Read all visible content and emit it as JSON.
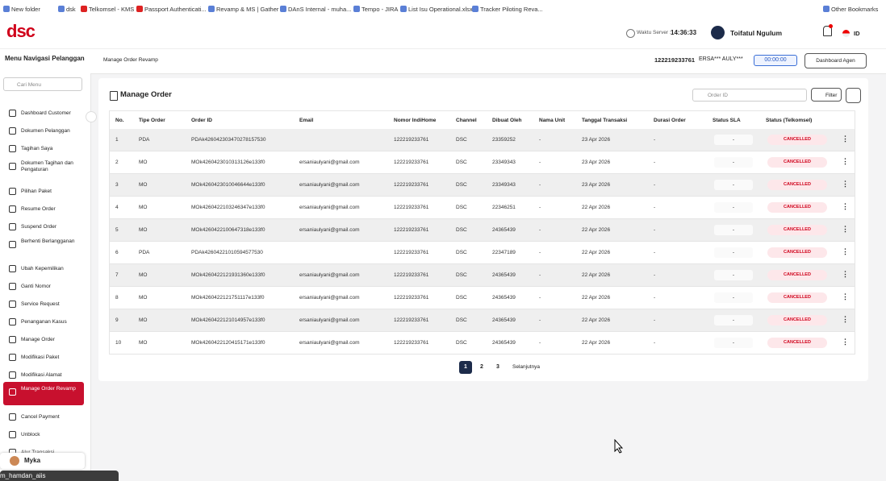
{
  "bookmarks": [
    "New folder",
    "dsk",
    "Telkomsel - KMS",
    "Passport Authenticati...",
    "Revamp & MS | Gather",
    "DAnS Internal - muha...",
    "Tempo - JIRA",
    "List Isu Operational.xlsx",
    "Tracker Piloting Reva...",
    "Other Bookmarks"
  ],
  "header": {
    "logo": "dsc",
    "server_label": "Waktu Server :",
    "server_time": "14:36:33",
    "user": "Toifatul Ngulum",
    "lang": "ID"
  },
  "subheader": {
    "nav_title": "Menu Navigasi Pelanggan",
    "breadcrumb": "Manage Order Revamp",
    "number": "122219233761",
    "name": "ERSA*** AULY***",
    "timer": "00:00:00",
    "button": "Dashboard Agen"
  },
  "sidebar": {
    "search": "Cari Menu",
    "items": [
      "Dashboard Customer",
      "Dokumen Pelanggan",
      "Tagihan Saya",
      "Dokumen Tagihan dan Pengaturan",
      "Pilihan Paket",
      "Resume Order",
      "Suspend Order",
      "Berhenti Berlangganan",
      "Ubah Kepemilikan",
      "Ganti Nomor",
      "Service Request",
      "Penanganan Kasus",
      "Manage Order",
      "Modifikasi Paket",
      "Modifikasi Alamat",
      "Manage Order Revamp",
      "Cancel Payment",
      "Unblock",
      "Alur Transaksi"
    ],
    "active": 15,
    "assistant": "Myka"
  },
  "card": {
    "title": "Manage Order",
    "search": "Order ID",
    "filter": "Filter"
  },
  "table": {
    "columns": [
      "No.",
      "Tipe Order",
      "Order ID",
      "Email",
      "Nomor IndiHome",
      "Channel",
      "Dibuat Oleh",
      "Nama Unit",
      "Tanggal Transaksi",
      "Durasi Order",
      "Status SLA",
      "Status (Telkomsel)"
    ],
    "rows": [
      [
        "1",
        "PDA",
        "PDAk426042303470278157530",
        null,
        "122219233761",
        "DSC",
        "23359252",
        "-",
        "23 Apr 2026",
        "-",
        "-",
        "CANCELLED"
      ],
      [
        "2",
        "MO",
        "MOk4260423010313126e133f0",
        "ersaniaulyani@gmail.com",
        "122219233761",
        "DSC",
        "23349343",
        "-",
        "23 Apr 2026",
        "-",
        "-",
        "CANCELLED"
      ],
      [
        "3",
        "MO",
        "MOk4260423010046644e133f0",
        "ersaniaulyani@gmail.com",
        "122219233761",
        "DSC",
        "23349343",
        "-",
        "23 Apr 2026",
        "-",
        "-",
        "CANCELLED"
      ],
      [
        "4",
        "MO",
        "MOk4260422103246347e133f0",
        "ersaniaulyani@gmail.com",
        "122219233761",
        "DSC",
        "22346251",
        "-",
        "22 Apr 2026",
        "-",
        "-",
        "CANCELLED"
      ],
      [
        "5",
        "MO",
        "MOk4260422100647318e133f0",
        "ersaniaulyani@gmail.com",
        "122219233761",
        "DSC",
        "24365439",
        "-",
        "22 Apr 2026",
        "-",
        "-",
        "CANCELLED"
      ],
      [
        "6",
        "PDA",
        "PDAk42604221010594577530",
        null,
        "122219233761",
        "DSC",
        "22347189",
        "-",
        "22 Apr 2026",
        "-",
        "-",
        "CANCELLED"
      ],
      [
        "7",
        "MO",
        "MOk4260422121931360e133f0",
        "ersaniaulyani@gmail.com",
        "122219233761",
        "DSC",
        "24365439",
        "-",
        "22 Apr 2026",
        "-",
        "-",
        "CANCELLED"
      ],
      [
        "8",
        "MO",
        "MOk4260422121751117e133f0",
        "ersaniaulyani@gmail.com",
        "122219233761",
        "DSC",
        "24365439",
        "-",
        "22 Apr 2026",
        "-",
        "-",
        "CANCELLED"
      ],
      [
        "9",
        "MO",
        "MOk4260422121014957e133f0",
        "ersaniaulyani@gmail.com",
        "122219233761",
        "DSC",
        "24365439",
        "-",
        "22 Apr 2026",
        "-",
        "-",
        "CANCELLED"
      ],
      [
        "10",
        "MO",
        "MOk4260422120415171e133f0",
        "ersaniaulyani@gmail.com",
        "122219233761",
        "DSC",
        "24365439",
        "-",
        "22 Apr 2026",
        "-",
        "-",
        "CANCELLED"
      ]
    ]
  },
  "pagination": {
    "pages": [
      "1",
      "2",
      "3"
    ],
    "current": 0,
    "next": "Selanjutnya"
  },
  "taskbar": {
    "tab": "m_hamdan_aiis"
  }
}
